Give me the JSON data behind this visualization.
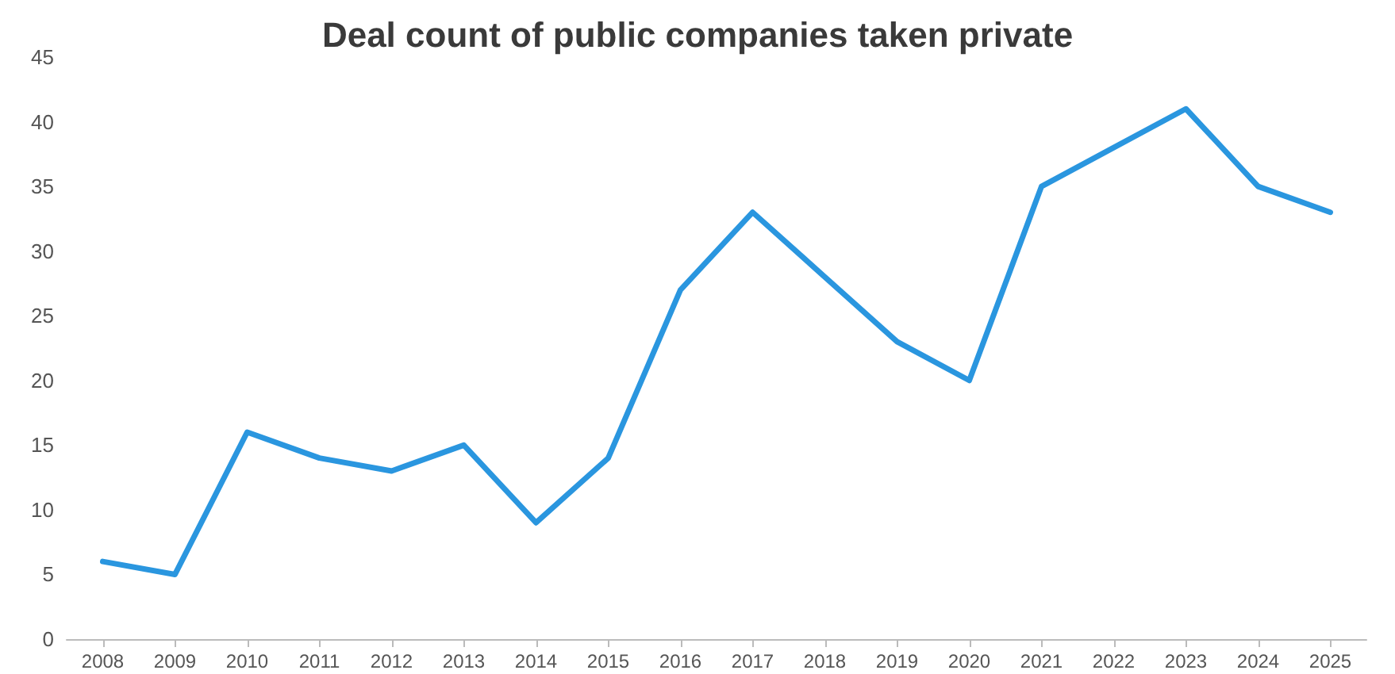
{
  "chart_data": {
    "type": "line",
    "title": "Deal count of public companies taken private",
    "categories": [
      "2008",
      "2009",
      "2010",
      "2011",
      "2012",
      "2013",
      "2014",
      "2015",
      "2016",
      "2017",
      "2018",
      "2019",
      "2020",
      "2021",
      "2022",
      "2023",
      "2024",
      "2025"
    ],
    "series": [
      {
        "color": "#2a96df",
        "values": [
          6,
          5,
          16,
          14,
          13,
          15,
          9,
          14,
          27,
          33,
          28,
          23,
          20,
          35,
          38,
          41,
          35,
          33
        ]
      }
    ],
    "ylim": [
      0,
      45
    ],
    "yticks": [
      0,
      5,
      10,
      15,
      20,
      25,
      30,
      35,
      40,
      45
    ],
    "grid": false,
    "marker": "none",
    "line_style": "solid"
  }
}
